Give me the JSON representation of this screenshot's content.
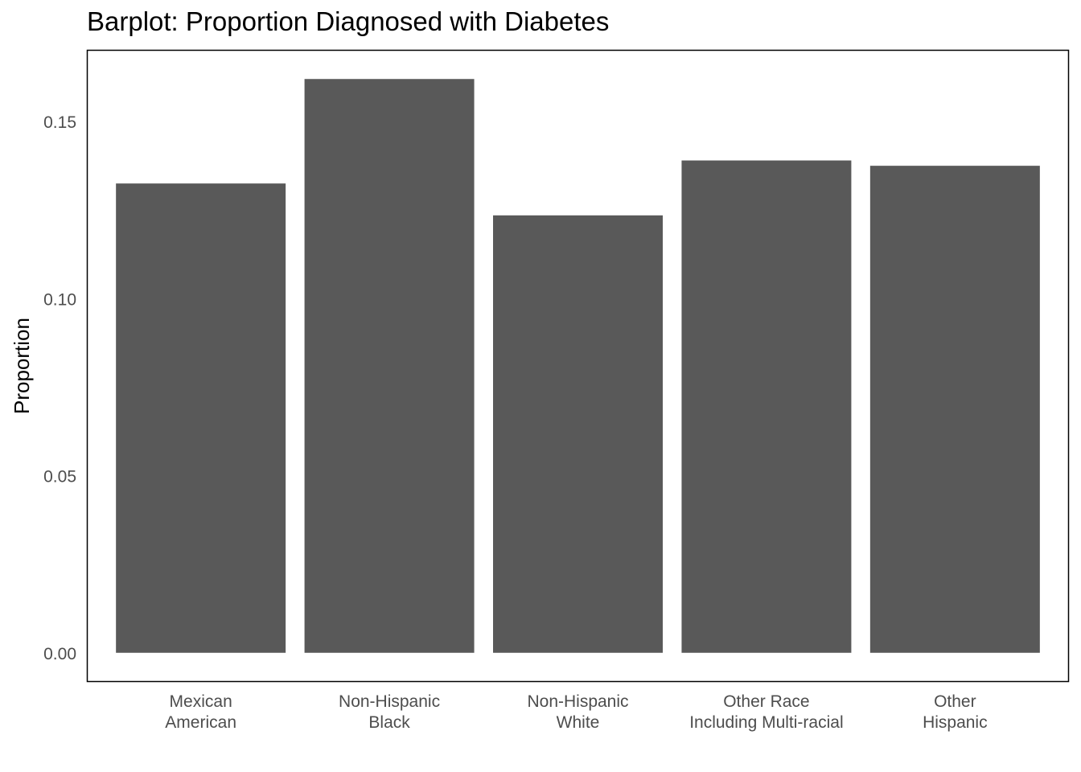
{
  "chart_data": {
    "type": "bar",
    "title": "Barplot: Proportion Diagnosed with Diabetes",
    "xlabel": "",
    "ylabel": "Proportion",
    "categories": [
      [
        "Mexican",
        "American"
      ],
      [
        "Non-Hispanic",
        "Black"
      ],
      [
        "Non-Hispanic",
        "White"
      ],
      [
        "Other Race",
        "Including Multi-racial"
      ],
      [
        "Other",
        "Hispanic"
      ]
    ],
    "values": [
      0.1325,
      0.162,
      0.1235,
      0.139,
      0.1375
    ],
    "ylim": [
      -0.008,
      0.17
    ],
    "yticks": [
      0.0,
      0.05,
      0.1,
      0.15
    ],
    "ytick_labels": [
      "0.00",
      "0.05",
      "0.10",
      "0.15"
    ],
    "grid": false,
    "bar_color": "#595959"
  }
}
